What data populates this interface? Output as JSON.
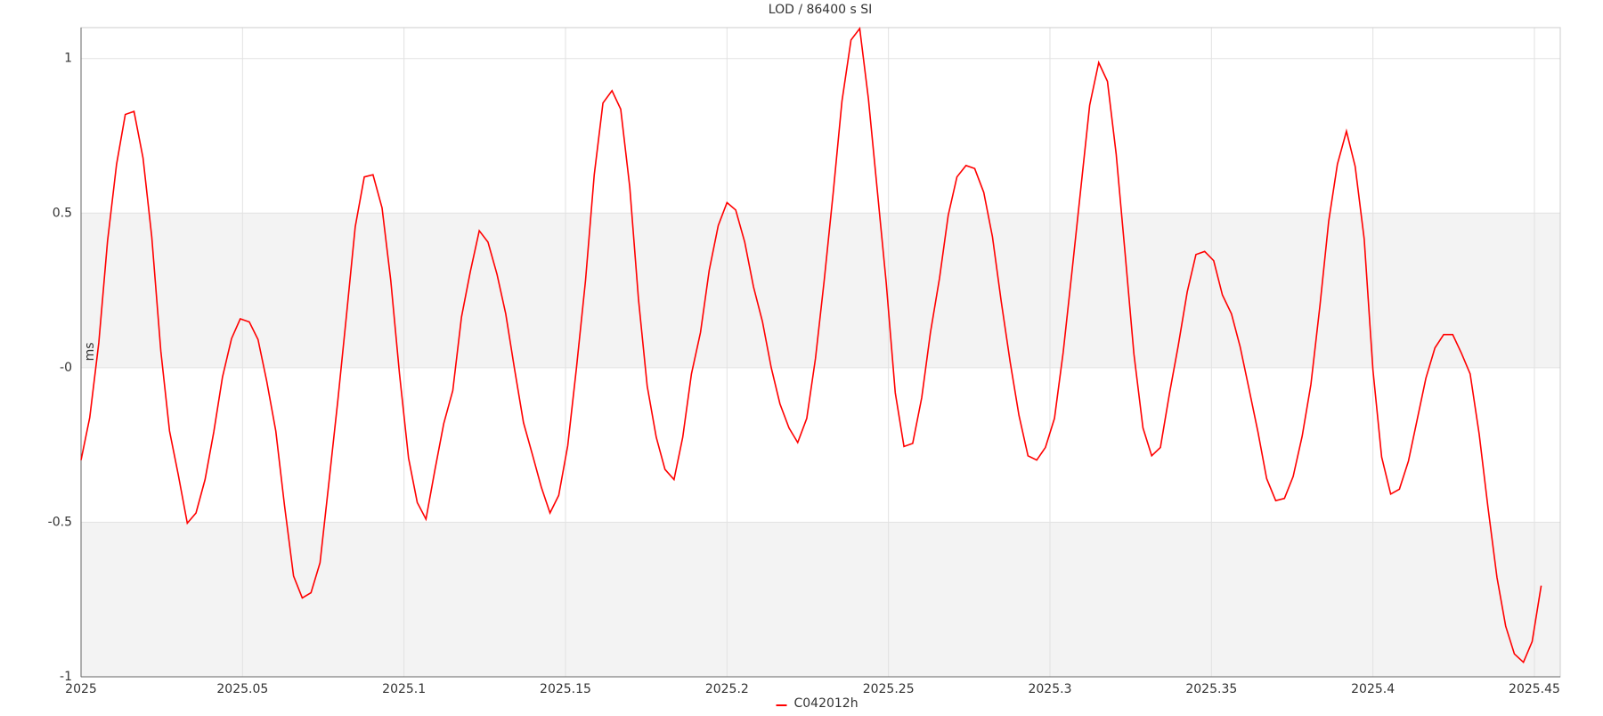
{
  "chart_data": {
    "type": "line",
    "title": "LOD / 86400 s SI",
    "y_label": "ms",
    "x": [
      2025,
      2025.0027,
      2025.0055,
      2025.0082,
      2025.011,
      2025.0137,
      2025.0164,
      2025.0192,
      2025.0219,
      2025.0247,
      2025.0274,
      2025.0301,
      2025.0329,
      2025.0356,
      2025.0384,
      2025.0411,
      2025.0438,
      2025.0466,
      2025.0493,
      2025.0521,
      2025.0548,
      2025.0575,
      2025.0603,
      2025.063,
      2025.0658,
      2025.0685,
      2025.0712,
      2025.074,
      2025.0767,
      2025.0795,
      2025.0822,
      2025.0849,
      2025.0877,
      2025.0904,
      2025.0932,
      2025.0959,
      2025.0986,
      2025.1014,
      2025.1041,
      2025.1068,
      2025.1096,
      2025.1123,
      2025.1151,
      2025.1178,
      2025.1205,
      2025.1233,
      2025.126,
      2025.1288,
      2025.1315,
      2025.1342,
      2025.137,
      2025.1397,
      2025.1425,
      2025.1452,
      2025.1479,
      2025.1507,
      2025.1534,
      2025.1562,
      2025.1589,
      2025.1616,
      2025.1644,
      2025.1671,
      2025.1699,
      2025.1726,
      2025.1753,
      2025.1781,
      2025.1808,
      2025.1836,
      2025.1863,
      2025.189,
      2025.1918,
      2025.1945,
      2025.1973,
      2025.2,
      2025.2027,
      2025.2055,
      2025.2082,
      2025.211,
      2025.2137,
      2025.2164,
      2025.2192,
      2025.2219,
      2025.2247,
      2025.2274,
      2025.2301,
      2025.2329,
      2025.2356,
      2025.2384,
      2025.2411,
      2025.2438,
      2025.2466,
      2025.2493,
      2025.2521,
      2025.2548,
      2025.2575,
      2025.2603,
      2025.263,
      2025.2658,
      2025.2685,
      2025.2712,
      2025.274,
      2025.2767,
      2025.2795,
      2025.2822,
      2025.2849,
      2025.2877,
      2025.2904,
      2025.2932,
      2025.2959,
      2025.2986,
      2025.3014,
      2025.3041,
      2025.3068,
      2025.3096,
      2025.3123,
      2025.3151,
      2025.3178,
      2025.3205,
      2025.3233,
      2025.326,
      2025.3288,
      2025.3315,
      2025.3342,
      2025.337,
      2025.3397,
      2025.3425,
      2025.3452,
      2025.3479,
      2025.3507,
      2025.3534,
      2025.3562,
      2025.3589,
      2025.3616,
      2025.3644,
      2025.3671,
      2025.3699,
      2025.3726,
      2025.3753,
      2025.3781,
      2025.3808,
      2025.3836,
      2025.3863,
      2025.389,
      2025.3918,
      2025.3945,
      2025.3973,
      2025.4,
      2025.4027,
      2025.4055,
      2025.4082,
      2025.411,
      2025.4137,
      2025.4164,
      2025.4192,
      2025.4219,
      2025.4247,
      2025.4274,
      2025.4301,
      2025.4329,
      2025.4356,
      2025.4384,
      2025.4411,
      2025.4438,
      2025.4466,
      2025.4493,
      2025.4521
    ],
    "series": [
      {
        "name": "C042012h",
        "color": "#ff0000",
        "values": [
          -0.299,
          -0.161,
          0.081,
          0.409,
          0.658,
          0.819,
          0.829,
          0.678,
          0.423,
          0.054,
          -0.205,
          -0.346,
          -0.503,
          -0.47,
          -0.362,
          -0.208,
          -0.03,
          0.094,
          0.158,
          0.148,
          0.091,
          -0.044,
          -0.205,
          -0.446,
          -0.674,
          -0.745,
          -0.728,
          -0.631,
          -0.376,
          -0.107,
          0.171,
          0.456,
          0.617,
          0.624,
          0.517,
          0.282,
          -0.02,
          -0.292,
          -0.436,
          -0.49,
          -0.329,
          -0.181,
          -0.074,
          0.164,
          0.309,
          0.443,
          0.406,
          0.302,
          0.174,
          -0.003,
          -0.178,
          -0.279,
          -0.386,
          -0.47,
          -0.413,
          -0.252,
          0,
          0.282,
          0.624,
          0.856,
          0.896,
          0.836,
          0.584,
          0.221,
          -0.06,
          -0.225,
          -0.329,
          -0.362,
          -0.225,
          -0.02,
          0.114,
          0.315,
          0.46,
          0.534,
          0.51,
          0.406,
          0.262,
          0.148,
          0,
          -0.117,
          -0.195,
          -0.242,
          -0.164,
          0.03,
          0.282,
          0.567,
          0.862,
          1.06,
          1.097,
          0.869,
          0.567,
          0.275,
          -0.081,
          -0.255,
          -0.245,
          -0.097,
          0.114,
          0.289,
          0.493,
          0.617,
          0.654,
          0.644,
          0.567,
          0.423,
          0.215,
          0.017,
          -0.154,
          -0.285,
          -0.299,
          -0.258,
          -0.164,
          0.05,
          0.309,
          0.584,
          0.849,
          0.987,
          0.926,
          0.691,
          0.366,
          0.044,
          -0.195,
          -0.285,
          -0.258,
          -0.084,
          0.07,
          0.245,
          0.366,
          0.376,
          0.346,
          0.235,
          0.174,
          0.067,
          -0.067,
          -0.208,
          -0.359,
          -0.43,
          -0.423,
          -0.352,
          -0.221,
          -0.054,
          0.201,
          0.473,
          0.658,
          0.765,
          0.651,
          0.416,
          -0.007,
          -0.289,
          -0.409,
          -0.393,
          -0.302,
          -0.168,
          -0.034,
          0.064,
          0.107,
          0.107,
          0.047,
          -0.02,
          -0.215,
          -0.45,
          -0.678,
          -0.836,
          -0.926,
          -0.953,
          -0.886,
          -0.705
        ]
      }
    ],
    "xlim": [
      2025,
      2025.458
    ],
    "xticks": [
      2025,
      2025.05,
      2025.1,
      2025.15,
      2025.2,
      2025.25,
      2025.3,
      2025.35,
      2025.4,
      2025.45
    ],
    "ylim": [
      -1,
      1.1
    ],
    "yticks": [
      -1,
      -0.5,
      {
        "value": 0,
        "label": "-0"
      },
      0.5,
      1
    ],
    "grid": true,
    "legend": "bottom"
  }
}
